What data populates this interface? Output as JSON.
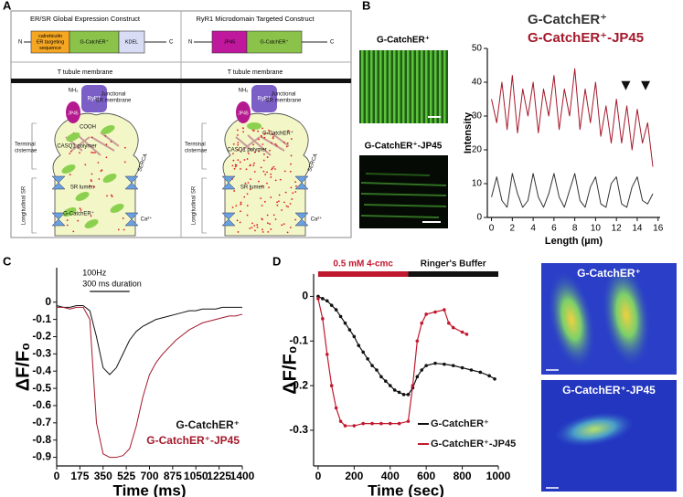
{
  "panel_labels": [
    "A",
    "B",
    "C",
    "D"
  ],
  "diagram": {
    "left": {
      "title": "ER/SR Global Expression Construct",
      "construct": {
        "n": "N",
        "parts": [
          [
            "calreticulin",
            "ER targeting",
            "sequence"
          ],
          [
            "G-CatchER⁺"
          ],
          [
            "KDEL"
          ]
        ],
        "c": "C"
      },
      "membrane": "T tubule membrane",
      "cell": {
        "nh2": "NH₂",
        "ryr1": "RyR1",
        "jp45": "JP45",
        "junctional": [
          "Junctional",
          "SR membrane"
        ],
        "cooh": "COOH",
        "terminal": [
          "Terminal",
          "cisternae"
        ],
        "casq1": "CASQ1 polymer",
        "serca": "SERCA",
        "lumen": "SR lumen",
        "longitudinal": "Longitudinal SR",
        "catcher": "G-CatchER⁺",
        "ca": "Ca²⁺"
      }
    },
    "right": {
      "title": "RyR1 Microdomain Targeted Construct",
      "construct": {
        "n": "N",
        "parts": [
          [
            "JP45"
          ],
          [
            "G-CatchER⁺"
          ]
        ],
        "c": "C"
      },
      "membrane": "T tubule membrane",
      "cell": {
        "nh2": "NH₂",
        "jp45": "JP45",
        "ryr1": "RyR1",
        "junctional": [
          "Junctional",
          "SR membrane"
        ],
        "catcher": "G-CatchER⁺",
        "terminal": [
          "Terminal",
          "cisternae"
        ],
        "casq1": "CASQ1 polymer",
        "serca": "SERCA",
        "lumen": "SR lumen",
        "longitudinal": "Longitudinal SR",
        "ca": "Ca²⁺"
      }
    }
  },
  "images": {
    "b_top": "G-CatchER⁺",
    "b_bottom": "G-CatchER⁺-JP45",
    "d_top": "G-CatchER⁺",
    "d_bottom": "G-CatchER⁺-JP45"
  },
  "chart_data": [
    {
      "type": "line",
      "x_label": "Length (µm)",
      "y_label": "Intensity",
      "xlim": [
        -0.4,
        16.2
      ],
      "ylim": [
        0,
        50
      ],
      "xticks": [
        0,
        2,
        4,
        6,
        8,
        10,
        12,
        14,
        16
      ],
      "yticks": [
        0,
        10,
        20,
        30,
        40,
        50
      ],
      "legend": "top",
      "series": [
        {
          "name": "G-CatchER⁺",
          "color": "#333333",
          "x": [
            0,
            0.5,
            1,
            1.5,
            2,
            2.5,
            3,
            3.5,
            4,
            4.5,
            5,
            5.5,
            6,
            6.5,
            7,
            7.5,
            8,
            8.5,
            9,
            9.5,
            10,
            10.5,
            11,
            11.5,
            12,
            12.5,
            13,
            13.5,
            14,
            14.5,
            15,
            15.5
          ],
          "values": [
            6,
            12,
            5,
            3,
            13,
            7,
            3,
            5,
            13,
            6,
            3,
            7,
            13,
            6,
            3,
            8,
            13,
            5,
            3,
            9,
            12,
            4,
            3,
            10,
            12,
            4,
            3,
            9,
            12,
            5,
            4,
            7
          ]
        },
        {
          "name": "G-CatchER⁺-JP45",
          "color": "#a3192b",
          "x": [
            0,
            0.5,
            1,
            1.5,
            2,
            2.5,
            3,
            3.5,
            4,
            4.5,
            5,
            5.5,
            6,
            6.5,
            7,
            7.5,
            8,
            8.5,
            9,
            9.5,
            10,
            10.5,
            11,
            11.5,
            12,
            12.5,
            13,
            13.5,
            14,
            14.5,
            15,
            15.5
          ],
          "values": [
            35,
            28,
            40,
            26,
            42,
            25,
            38,
            30,
            40,
            25,
            38,
            30,
            42,
            26,
            38,
            30,
            44,
            26,
            38,
            28,
            40,
            24,
            33,
            22,
            35,
            22,
            33,
            20,
            32,
            22,
            28,
            15
          ]
        }
      ],
      "arrowheads": {
        "x": [
          12.9,
          14.8
        ],
        "y": [
          39,
          39
        ]
      }
    },
    {
      "type": "line",
      "x_label": "Time (ms)",
      "y_label": "ΔF/F₀",
      "xlim": [
        0,
        1400
      ],
      "ylim": [
        -0.95,
        0.2
      ],
      "xticks": [
        0,
        175,
        350,
        525,
        700,
        875,
        1050,
        1225,
        1400
      ],
      "yticks": [
        0,
        -0.1,
        -0.2,
        -0.3,
        -0.4,
        -0.5,
        -0.6,
        -0.7,
        -0.8,
        -0.9
      ],
      "legend": "lower-right",
      "stimulus": {
        "labels": [
          "100Hz",
          "300 ms duration"
        ],
        "start": 250,
        "end": 550
      },
      "series": [
        {
          "name": "G-CatchER⁺",
          "color": "#111111",
          "x": [
            0,
            50,
            100,
            150,
            200,
            250,
            300,
            350,
            400,
            450,
            500,
            550,
            600,
            650,
            700,
            750,
            800,
            850,
            900,
            950,
            1000,
            1050,
            1100,
            1150,
            1200,
            1250,
            1300,
            1350,
            1400
          ],
          "values": [
            -0.02,
            -0.03,
            -0.03,
            -0.02,
            -0.02,
            -0.05,
            -0.2,
            -0.38,
            -0.42,
            -0.38,
            -0.3,
            -0.22,
            -0.17,
            -0.14,
            -0.12,
            -0.1,
            -0.09,
            -0.08,
            -0.07,
            -0.06,
            -0.05,
            -0.05,
            -0.04,
            -0.04,
            -0.04,
            -0.03,
            -0.03,
            -0.03,
            -0.03
          ]
        },
        {
          "name": "G-CatchER⁺-JP45",
          "color": "#a3192b",
          "x": [
            0,
            50,
            100,
            150,
            200,
            250,
            300,
            350,
            400,
            450,
            500,
            550,
            600,
            650,
            700,
            750,
            800,
            850,
            900,
            950,
            1000,
            1050,
            1100,
            1150,
            1200,
            1250,
            1300,
            1350,
            1400
          ],
          "values": [
            -0.03,
            -0.03,
            -0.04,
            -0.03,
            -0.03,
            -0.1,
            -0.7,
            -0.88,
            -0.9,
            -0.9,
            -0.89,
            -0.85,
            -0.72,
            -0.55,
            -0.42,
            -0.35,
            -0.3,
            -0.26,
            -0.22,
            -0.19,
            -0.16,
            -0.14,
            -0.12,
            -0.11,
            -0.1,
            -0.09,
            -0.08,
            -0.08,
            -0.07
          ]
        }
      ]
    },
    {
      "type": "line",
      "x_label": "Time (sec)",
      "y_label": "ΔF/F₀",
      "xlim": [
        -25,
        1000
      ],
      "ylim": [
        -0.38,
        0.05
      ],
      "xticks": [
        0,
        200,
        400,
        600,
        800,
        1000
      ],
      "yticks": [
        0,
        -0.1,
        -0.2,
        -0.3
      ],
      "legend": "lower-right",
      "legend_lines": true,
      "treatments": [
        {
          "label": "0.5 mM 4-cmc",
          "color": "#c0182e",
          "start": 0,
          "end": 500
        },
        {
          "label": "Ringer's Buffer",
          "color": "#111111",
          "start": 500,
          "end": 1000
        }
      ],
      "series": [
        {
          "name": "G-CatchER⁺",
          "color": "#111111",
          "markers": true,
          "x": [
            0,
            25,
            50,
            75,
            100,
            125,
            150,
            175,
            200,
            225,
            250,
            275,
            300,
            325,
            350,
            375,
            400,
            425,
            450,
            475,
            500,
            525,
            550,
            575,
            600,
            650,
            700,
            750,
            800,
            850,
            900,
            950,
            980
          ],
          "values": [
            0,
            -0.005,
            -0.01,
            -0.02,
            -0.03,
            -0.045,
            -0.06,
            -0.075,
            -0.09,
            -0.11,
            -0.125,
            -0.14,
            -0.155,
            -0.165,
            -0.18,
            -0.19,
            -0.2,
            -0.21,
            -0.215,
            -0.22,
            -0.22,
            -0.205,
            -0.18,
            -0.165,
            -0.155,
            -0.15,
            -0.152,
            -0.155,
            -0.16,
            -0.165,
            -0.17,
            -0.178,
            -0.185
          ]
        },
        {
          "name": "G-CatchER⁺-JP45",
          "color": "#c0182e",
          "markers": true,
          "x": [
            0,
            25,
            50,
            75,
            100,
            125,
            150,
            200,
            250,
            300,
            350,
            400,
            450,
            500,
            525,
            550,
            575,
            600,
            650,
            700,
            725,
            750,
            800,
            825
          ],
          "values": [
            -0.005,
            -0.05,
            -0.13,
            -0.2,
            -0.25,
            -0.28,
            -0.29,
            -0.29,
            -0.285,
            -0.285,
            -0.285,
            -0.285,
            -0.285,
            -0.28,
            -0.2,
            -0.1,
            -0.06,
            -0.04,
            -0.035,
            -0.03,
            -0.06,
            -0.07,
            -0.08,
            -0.085
          ]
        }
      ]
    }
  ]
}
